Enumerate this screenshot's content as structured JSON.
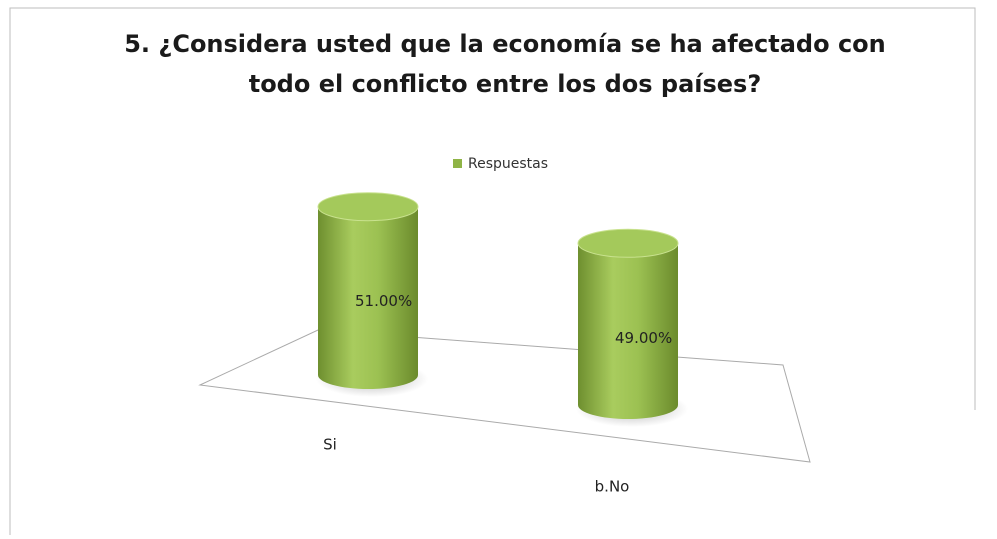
{
  "chart_data": {
    "type": "cylinder",
    "title": [
      "5. ¿Considera usted que la economía se ha afectado con",
      "todo el conflicto entre los dos países?"
    ],
    "legend": "Respuestas",
    "series": [
      {
        "name": "Respuestas",
        "color": "#8fb446",
        "categories": [
          "Si",
          "b.No"
        ],
        "values": [
          51,
          49
        ],
        "value_labels": [
          "51.00%",
          "49.00%"
        ]
      }
    ]
  }
}
